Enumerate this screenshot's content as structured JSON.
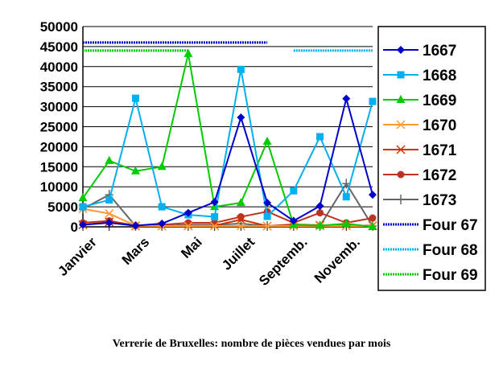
{
  "caption": "Verrerie de Bruxelles: nombre de pièces vendues par mois",
  "chart_data": {
    "type": "line",
    "title": "",
    "xlabel": "",
    "ylabel": "",
    "ylim": [
      0,
      50000
    ],
    "yticks": [
      0,
      5000,
      10000,
      15000,
      20000,
      25000,
      30000,
      35000,
      40000,
      45000,
      50000
    ],
    "ytick_labels": [
      "0",
      "5000",
      "10000",
      "15000",
      "20000",
      "25000",
      "30000",
      "35000",
      "40000",
      "45000",
      "50000"
    ],
    "grid": "horizontal",
    "legend_position": "right",
    "x_tick_labels": [
      {
        "label": "Janvier",
        "month": 1
      },
      {
        "label": "Mars",
        "month": 3
      },
      {
        "label": "Mai",
        "month": 5
      },
      {
        "label": "Juillet",
        "month": 7
      },
      {
        "label": "Septemb.",
        "month": 9
      },
      {
        "label": "Novemb.",
        "month": 11
      }
    ],
    "x": [
      1,
      2,
      3,
      4,
      5,
      6,
      7,
      8,
      9,
      10,
      11,
      12
    ],
    "series": [
      {
        "name": "1667",
        "color": "#0000cc",
        "marker": "diamond",
        "values": [
          500,
          1000,
          300,
          800,
          3500,
          6200,
          27300,
          6000,
          1500,
          5200,
          32000,
          8000
        ]
      },
      {
        "name": "1668",
        "color": "#00b0f0",
        "marker": "square",
        "values": [
          5000,
          6700,
          32100,
          5000,
          3000,
          2500,
          39300,
          2600,
          9000,
          22500,
          7500,
          31300
        ]
      },
      {
        "name": "1669",
        "color": "#00cc00",
        "marker": "triangle",
        "values": [
          7200,
          16500,
          13900,
          15000,
          43200,
          5000,
          6000,
          21300,
          500,
          300,
          800,
          0
        ]
      },
      {
        "name": "1670",
        "color": "#ff9933",
        "marker": "x",
        "values": [
          4500,
          3300,
          300,
          200,
          200,
          200,
          200,
          200,
          200,
          200,
          200,
          200
        ]
      },
      {
        "name": "1671",
        "color": "#cc3300",
        "marker": "x",
        "values": [
          500,
          1200,
          200,
          200,
          300,
          300,
          1800,
          200,
          600,
          400,
          300,
          300
        ]
      },
      {
        "name": "1672",
        "color": "#bb3322",
        "marker": "circle",
        "values": [
          1000,
          1500,
          300,
          500,
          1000,
          1000,
          2500,
          3800,
          1000,
          3500,
          1000,
          2200
        ]
      },
      {
        "name": "1673",
        "color": "#666666",
        "marker": "plus",
        "values": [
          4500,
          8000,
          200,
          200,
          500,
          500,
          800,
          200,
          300,
          200,
          10800,
          200
        ]
      }
    ],
    "reference_lines": [
      {
        "name": "Four 67",
        "color": "#0000cc",
        "value": 46000,
        "from": 1,
        "to": 8
      },
      {
        "name": "Four 68",
        "color": "#00b0f0",
        "value": 44000,
        "from": 9,
        "to": 12
      },
      {
        "name": "Four 69",
        "color": "#00cc00",
        "value": 44000,
        "from": 1,
        "to": 5
      }
    ]
  }
}
